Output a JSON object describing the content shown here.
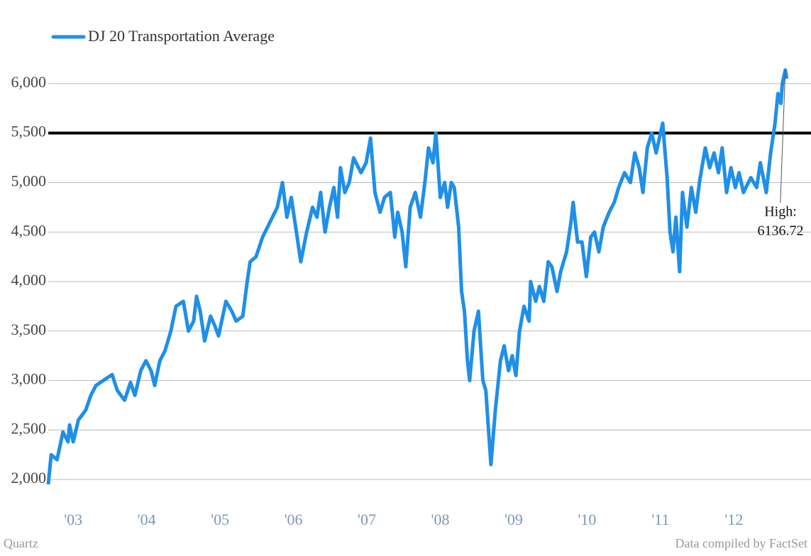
{
  "chart_data": {
    "type": "line",
    "series": [
      {
        "name": "DJ 20 Transportation Average",
        "color": "#1f8fe8",
        "x": [
          2003.16,
          2003.2,
          2003.28,
          2003.36,
          2003.43,
          2003.45,
          2003.5,
          2003.57,
          2003.67,
          2003.74,
          2003.81,
          2003.91,
          2004.03,
          2004.1,
          2004.2,
          2004.28,
          2004.34,
          2004.42,
          2004.49,
          2004.56,
          2004.61,
          2004.68,
          2004.75,
          2004.83,
          2004.9,
          2005.0,
          2005.07,
          2005.14,
          2005.18,
          2005.23,
          2005.29,
          2005.37,
          2005.43,
          2005.48,
          2005.58,
          2005.66,
          2005.72,
          2005.81,
          2005.87,
          2005.91,
          2005.99,
          2006.08,
          2006.18,
          2006.28,
          2006.35,
          2006.41,
          2006.47,
          2006.53,
          2006.6,
          2006.68,
          2006.76,
          2006.82,
          2006.87,
          2006.93,
          2006.99,
          2007.05,
          2007.1,
          2007.14,
          2007.2,
          2007.26,
          2007.32,
          2007.42,
          2007.49,
          2007.55,
          2007.61,
          2007.68,
          2007.74,
          2007.82,
          2007.88,
          2007.92,
          2007.98,
          2008.03,
          2008.09,
          2008.16,
          2008.23,
          2008.29,
          2008.34,
          2008.4,
          2008.44,
          2008.5,
          2008.56,
          2008.6,
          2008.65,
          2008.69,
          2008.75,
          2008.79,
          2008.83,
          2008.87,
          2008.9,
          2008.96,
          2009.02,
          2009.08,
          2009.12,
          2009.19,
          2009.25,
          2009.32,
          2009.37,
          2009.43,
          2009.48,
          2009.53,
          2009.58,
          2009.64,
          2009.71,
          2009.73,
          2009.8,
          2009.85,
          2009.91,
          2009.97,
          2010.02,
          2010.09,
          2010.14,
          2010.22,
          2010.28,
          2010.31,
          2010.37,
          2010.43,
          2010.49,
          2010.55,
          2010.6,
          2010.66,
          2010.72,
          2010.8,
          2010.87,
          2010.93,
          2011.01,
          2011.09,
          2011.15,
          2011.21,
          2011.26,
          2011.32,
          2011.38,
          2011.44,
          2011.53,
          2011.59,
          2011.63,
          2011.67,
          2011.71,
          2011.76,
          2011.8,
          2011.86,
          2011.92,
          2011.98,
          2012.03,
          2012.11,
          2012.17,
          2012.23,
          2012.29,
          2012.34,
          2012.4,
          2012.46,
          2012.52,
          2012.57,
          2012.63,
          2012.73,
          2012.81,
          2012.86,
          2012.94,
          2013.0,
          2013.06,
          2013.1,
          2013.14,
          2013.16,
          2013.2,
          2013.22
        ],
        "values": [
          1950,
          2250,
          2200,
          2480,
          2380,
          2550,
          2380,
          2600,
          2700,
          2850,
          2950,
          3000,
          3060,
          2900,
          2800,
          2980,
          2850,
          3100,
          3200,
          3100,
          2950,
          3200,
          3300,
          3500,
          3750,
          3800,
          3500,
          3600,
          3850,
          3700,
          3400,
          3650,
          3550,
          3450,
          3800,
          3700,
          3600,
          3650,
          4000,
          4200,
          4250,
          4450,
          4600,
          4750,
          5000,
          4650,
          4850,
          4550,
          4200,
          4500,
          4750,
          4650,
          4900,
          4500,
          4750,
          4950,
          4650,
          5150,
          4900,
          5000,
          5250,
          5100,
          5200,
          5450,
          4900,
          4700,
          4850,
          4900,
          4450,
          4700,
          4500,
          4150,
          4750,
          4900,
          4650,
          5000,
          5350,
          5200,
          5500,
          4850,
          5000,
          4750,
          5000,
          4950,
          4550,
          3900,
          3700,
          3200,
          3000,
          3500,
          3700,
          3000,
          2900,
          2150,
          2700,
          3200,
          3350,
          3100,
          3250,
          3050,
          3500,
          3750,
          3600,
          4000,
          3800,
          3950,
          3800,
          4200,
          4150,
          3900,
          4100,
          4300,
          4600,
          4800,
          4400,
          4400,
          4050,
          4450,
          4500,
          4300,
          4550,
          4700,
          4800,
          4950,
          5100,
          5000,
          5300,
          5150,
          4900,
          5350,
          5500,
          5300,
          5600,
          5050,
          4500,
          4300,
          4650,
          4100,
          4900,
          4550,
          4950,
          4700,
          5000,
          5350,
          5150,
          5300,
          5100,
          5350,
          4900,
          5150,
          4950,
          5100,
          4900,
          5050,
          4950,
          5200,
          4900,
          5300,
          5600,
          5900,
          5800,
          6000,
          6136.72,
          6050
        ]
      }
    ],
    "xlim": [
      2003.16,
      2013.55
    ],
    "xticks": [
      {
        "value": 2003.5,
        "label": "'03"
      },
      {
        "value": 2004.5,
        "label": "'04"
      },
      {
        "value": 2005.5,
        "label": "'05"
      },
      {
        "value": 2006.5,
        "label": "'06"
      },
      {
        "value": 2007.5,
        "label": "'07"
      },
      {
        "value": 2008.5,
        "label": "'08"
      },
      {
        "value": 2009.5,
        "label": "'09"
      },
      {
        "value": 2010.5,
        "label": "'10"
      },
      {
        "value": 2011.5,
        "label": "'11"
      },
      {
        "value": 2012.5,
        "label": "'12"
      }
    ],
    "ylim": [
      1850,
      6200
    ],
    "yticks": [
      {
        "value": 2000,
        "label": "2,000"
      },
      {
        "value": 2500,
        "label": "2,500"
      },
      {
        "value": 3000,
        "label": "3,000"
      },
      {
        "value": 3500,
        "label": "3,500"
      },
      {
        "value": 4000,
        "label": "4,000"
      },
      {
        "value": 4500,
        "label": "4,500"
      },
      {
        "value": 5000,
        "label": "5,000"
      },
      {
        "value": 5500,
        "label": "5,500"
      },
      {
        "value": 6000,
        "label": "6,000"
      }
    ],
    "grid": true,
    "reference_line": 5500,
    "annotation": {
      "label": "High:",
      "value": 6136.72,
      "x": 2013.2
    },
    "source_left": "Quartz",
    "source_right": "Data compiled by FactSet"
  }
}
